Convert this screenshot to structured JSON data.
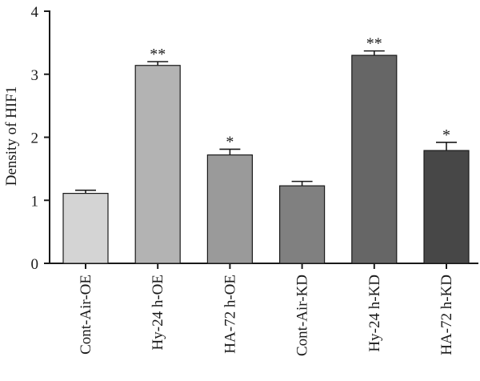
{
  "chart_data": {
    "type": "bar",
    "title": "",
    "xlabel": "",
    "ylabel": "Density of HIF1",
    "ylim": [
      0,
      4
    ],
    "yticks": [
      0,
      1,
      2,
      3,
      4
    ],
    "categories": [
      "Cont-Air-OE",
      "Hy-24 h-OE",
      "HA-72 h-OE",
      "Cont-Air-KD",
      "Hy-24 h-KD",
      "HA-72 h-KD"
    ],
    "values": [
      1.11,
      3.14,
      1.72,
      1.23,
      3.3,
      1.79
    ],
    "errors": [
      0.05,
      0.06,
      0.09,
      0.07,
      0.07,
      0.13
    ],
    "significance": [
      "",
      "**",
      "*",
      "",
      "**",
      "*"
    ],
    "colors": [
      "#d4d4d4",
      "#b3b3b3",
      "#9a9a9a",
      "#808080",
      "#666666",
      "#474747"
    ],
    "grid": false
  }
}
